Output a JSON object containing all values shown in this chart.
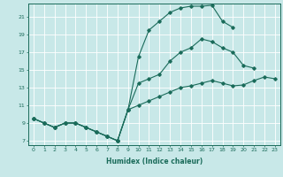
{
  "xlabel": "Humidex (Indice chaleur)",
  "bg_color": "#c8e8e8",
  "line_color": "#1a6b5a",
  "grid_color": "#ffffff",
  "xlim": [
    -0.5,
    23.5
  ],
  "ylim": [
    6.5,
    22.5
  ],
  "xticks": [
    0,
    1,
    2,
    3,
    4,
    5,
    6,
    7,
    8,
    9,
    10,
    11,
    12,
    13,
    14,
    15,
    16,
    17,
    18,
    19,
    20,
    21,
    22,
    23
  ],
  "yticks": [
    7,
    9,
    11,
    13,
    15,
    17,
    19,
    21
  ],
  "line1_x": [
    0,
    1,
    2,
    3,
    4,
    5,
    6,
    7,
    8,
    9,
    10,
    11,
    12,
    13,
    14,
    15,
    16,
    17,
    18,
    19
  ],
  "line1_y": [
    9.5,
    9.0,
    8.5,
    9.0,
    9.0,
    8.5,
    8.0,
    7.5,
    7.0,
    10.5,
    16.5,
    19.5,
    20.5,
    21.5,
    22.0,
    22.2,
    22.2,
    22.3,
    20.5,
    19.8
  ],
  "line2_x": [
    0,
    1,
    2,
    3,
    4,
    5,
    6,
    7,
    8,
    9,
    10,
    11,
    12,
    13,
    14,
    15,
    16,
    17,
    18,
    19,
    20,
    21
  ],
  "line2_y": [
    9.5,
    9.0,
    8.5,
    9.0,
    9.0,
    8.5,
    8.0,
    7.5,
    7.0,
    10.5,
    13.5,
    14.0,
    14.5,
    16.0,
    17.0,
    17.5,
    18.5,
    18.2,
    17.5,
    17.0,
    15.5,
    15.2
  ],
  "line3_x": [
    0,
    1,
    2,
    3,
    4,
    5,
    6,
    7,
    8,
    9,
    10,
    11,
    12,
    13,
    14,
    15,
    16,
    17,
    18,
    19,
    20,
    21,
    22,
    23
  ],
  "line3_y": [
    9.5,
    9.0,
    8.5,
    9.0,
    9.0,
    8.5,
    8.0,
    7.5,
    7.0,
    10.5,
    11.0,
    11.5,
    12.0,
    12.5,
    13.0,
    13.2,
    13.5,
    13.8,
    13.5,
    13.2,
    13.3,
    13.8,
    14.2,
    14.0
  ]
}
